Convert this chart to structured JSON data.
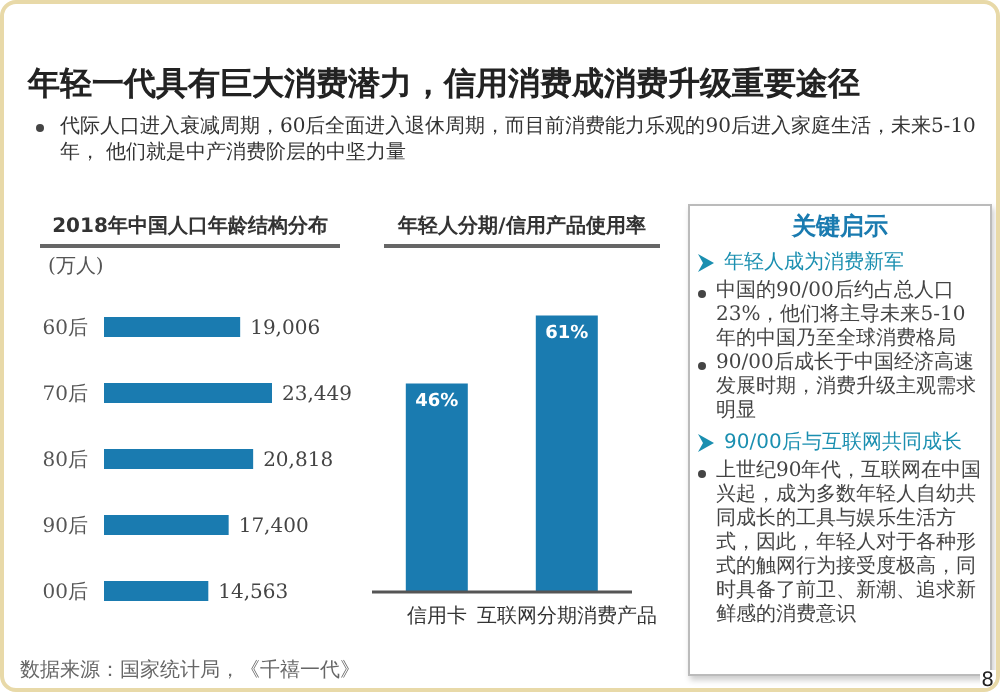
{
  "chart_data": [
    {
      "type": "other",
      "title": "年轻一代具有巨大消费潜力，信用消费成消费升级重要途径",
      "subtitle": "代际人口进入衰减周期，60后全面进入退休周期，而目前消费能力乐观的90后进入家庭生活，未来5-10年， 他们就是中产消费阶层的中坚力量",
      "annotations": [
        "8"
      ]
    },
    {
      "type": "bar",
      "orientation": "horizontal",
      "title": "2018年中国人口年龄结构分布",
      "categories": [
        "60后",
        "70后",
        "80后",
        "90后",
        "00后"
      ],
      "values": [
        19006,
        23449,
        20818,
        17400,
        14563
      ],
      "value_labels": [
        "19,006",
        "23,449",
        "20,818",
        "17,400",
        "14,563"
      ],
      "color": "#1a7bb0",
      "annotations": [
        "(万人)",
        "数据来源：国家统计局，《千禧一代》"
      ]
    },
    {
      "type": "bar",
      "title": "年轻人分期/信用产品使用率",
      "categories": [
        "信用卡",
        "互联网分期消费产品"
      ],
      "values": [
        46,
        61
      ],
      "value_labels": [
        "46%",
        "61%"
      ],
      "color": "#1a7bb0"
    },
    {
      "type": "other",
      "title": "关键启示",
      "annotations": [
        "年轻人成为消费新军",
        "中国的90/00后约占总人口23%，他们将主导未来5-10年的中国乃至全球消费格局",
        "90/00后成长于中国经济高速发展时期，消费升级主观需求明显",
        "90/00后与互联网共同成长",
        "上世纪90年代，互联网在中国兴起，成为多数年轻人自幼共同成长的工具与娱乐生活方式，因此，年轻人对于各种形式的触网行为接受度极高，同时具备了前卫、新潮、追求新鲜感的消费意识"
      ]
    }
  ]
}
